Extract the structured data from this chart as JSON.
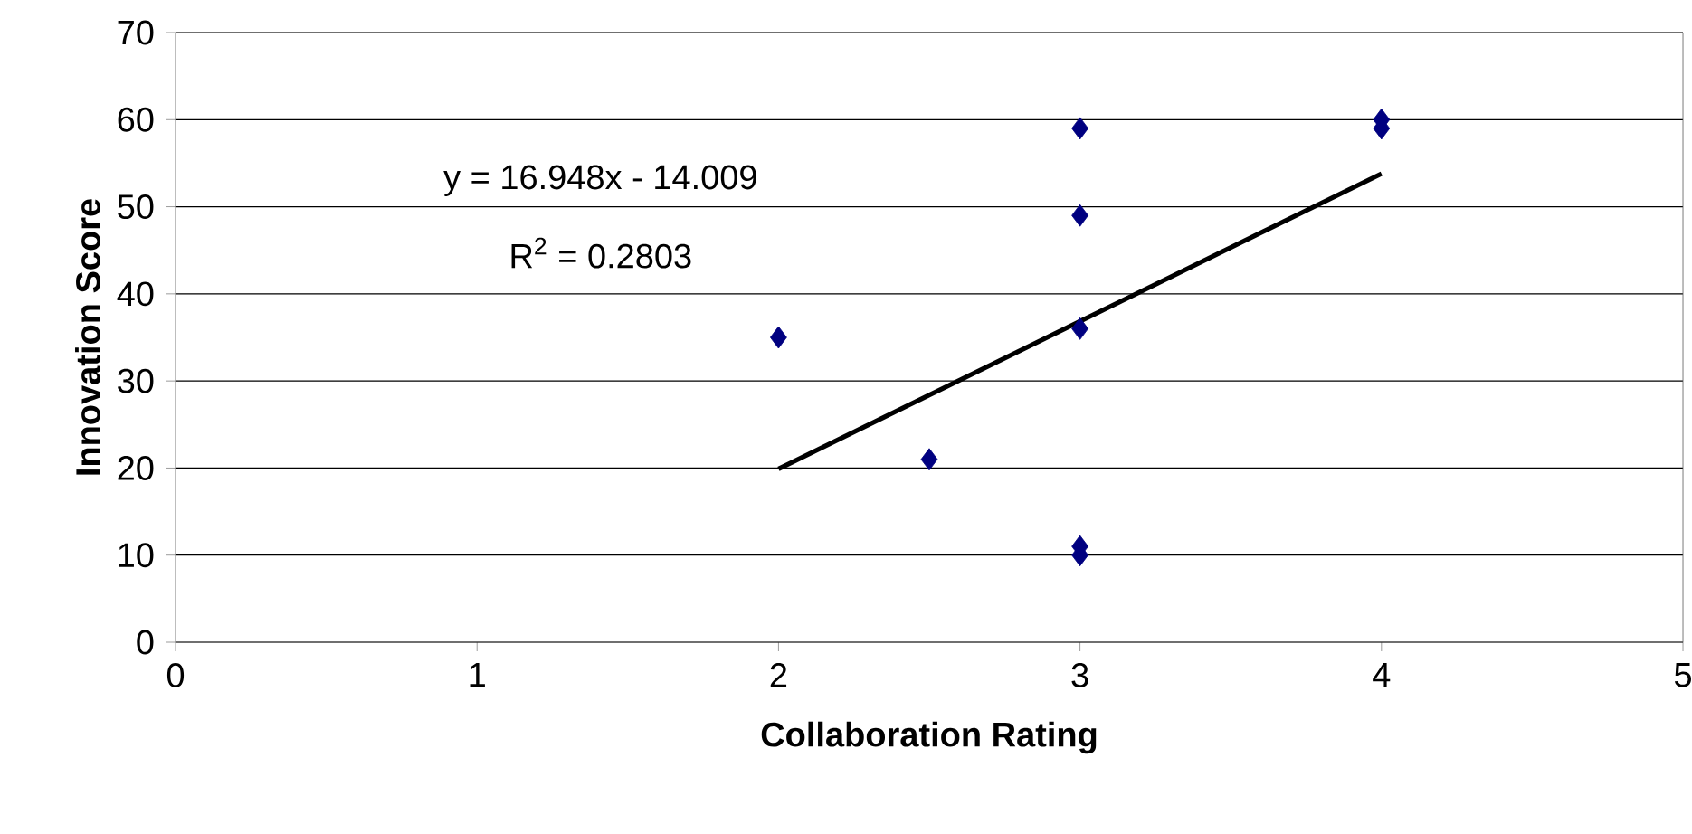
{
  "chart_data": {
    "type": "scatter",
    "xlabel": "Collaboration Rating",
    "ylabel": "Innovation Score",
    "xlim": [
      0,
      5
    ],
    "xticks": [
      0,
      1,
      2,
      3,
      4,
      5
    ],
    "ylim": [
      0,
      70
    ],
    "yticks": [
      0,
      10,
      20,
      30,
      40,
      50,
      60,
      70
    ],
    "grid": "y",
    "marker": "diamond",
    "series": [
      {
        "color": "#000080",
        "x": [
          2,
          2.5,
          3,
          3,
          3,
          3,
          3,
          4,
          4
        ],
        "values": [
          35,
          21,
          59,
          49,
          36,
          11,
          10,
          60,
          59
        ]
      },
      {
        "type": "line",
        "color": "#000000",
        "marker": "none",
        "x": [
          2,
          4
        ],
        "values": [
          19.9,
          53.8
        ]
      }
    ],
    "annotations": [
      "y = 16.948x - 14.009",
      "R$^{2}$ = 0.2803"
    ]
  }
}
